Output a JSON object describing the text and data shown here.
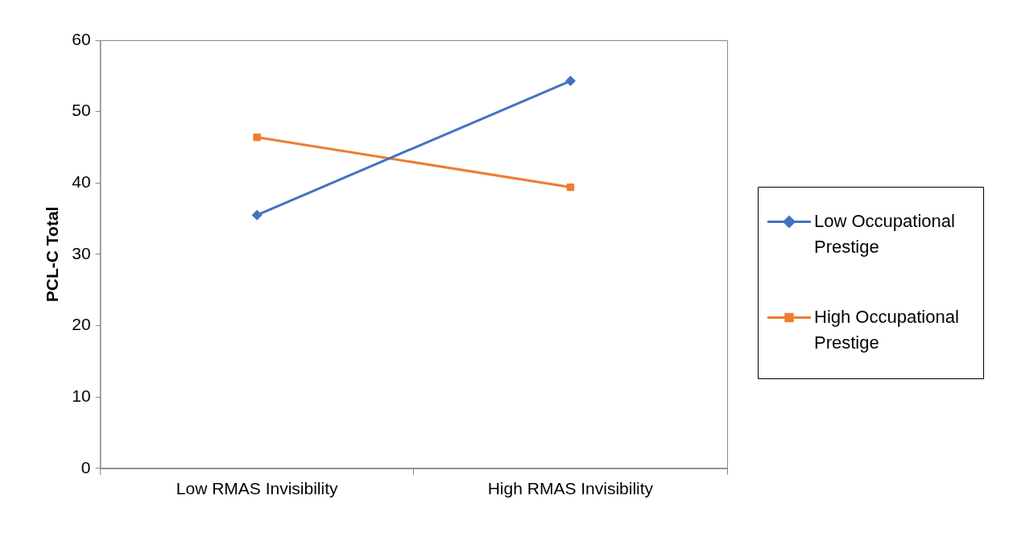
{
  "chart_data": {
    "type": "line",
    "ylabel": "PCL-C Total",
    "categories": [
      "Low RMAS Invisibility",
      "High RMAS Invisibility"
    ],
    "series": [
      {
        "name": "Low Occupational Prestige",
        "color": "#4472c4",
        "marker": "diamond",
        "values": [
          35.5,
          54.3
        ]
      },
      {
        "name": "High Occupational Prestige",
        "color": "#ed7d31",
        "marker": "square",
        "values": [
          46.4,
          39.4
        ]
      }
    ],
    "ylim": [
      0,
      60
    ],
    "yticks": [
      0,
      10,
      20,
      30,
      40,
      50,
      60
    ],
    "grid": false,
    "legend": "right"
  }
}
